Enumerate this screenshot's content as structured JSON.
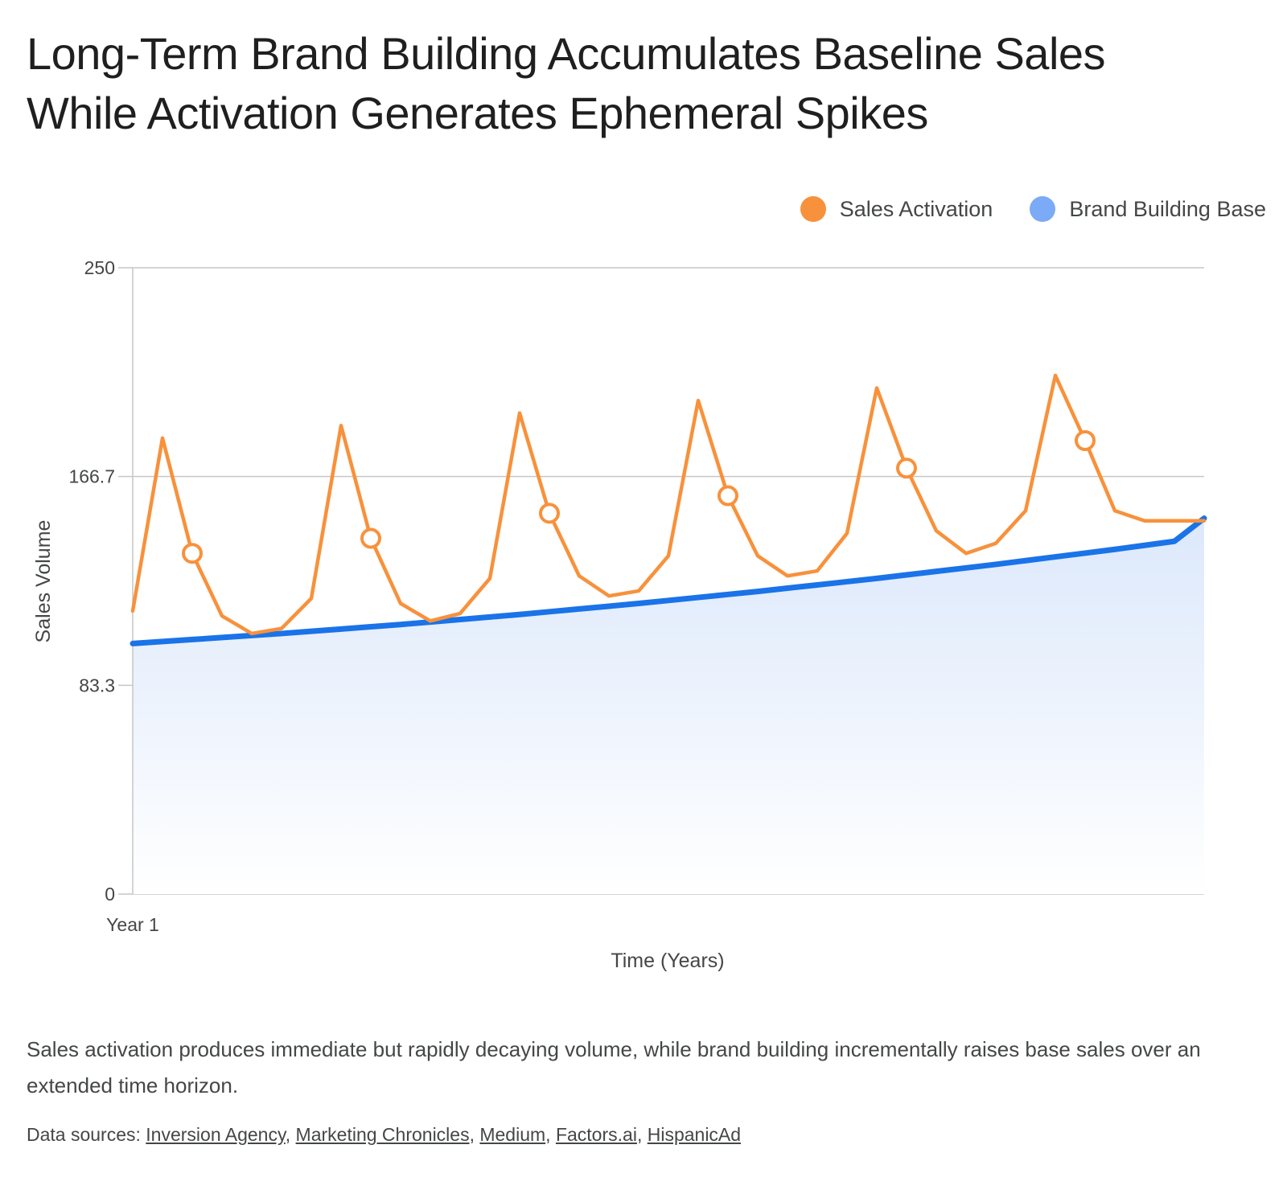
{
  "title_line1": "Long-Term Brand Building Accumulates Baseline Sales",
  "title_line2": "While Activation Generates Ephemeral Spikes",
  "description": "Sales activation produces immediate but rapidly decaying volume, while brand building incrementally raises base sales over an extended time horizon.",
  "sources": {
    "prefix": "Data sources: ",
    "links": [
      "Inversion Agency",
      "Marketing Chronicles",
      "Medium",
      "Factors.ai",
      "HispanicAd"
    ],
    "separator": ", "
  },
  "colors": {
    "activation": "#f8913b",
    "base": "#1a73e8",
    "base_legend": "#7baaf7",
    "area_top": "#dce8fb",
    "grid": "#c4c7c5",
    "axis_text": "#444746"
  },
  "chart_data": {
    "type": "line",
    "xlabel": "Time (Years)",
    "ylabel": "Sales Volume",
    "ylim": [
      0,
      250
    ],
    "yticks": [
      "0",
      "83.3",
      "166.7",
      "250"
    ],
    "x_tick_labels": [
      {
        "index": 0,
        "label": "Year 1"
      }
    ],
    "grid": true,
    "legend_position": "top-right",
    "x": [
      0,
      1,
      2,
      3,
      4,
      5,
      6,
      7,
      8,
      9,
      10,
      11,
      12,
      13,
      14,
      15,
      16,
      17,
      18,
      19,
      20,
      21,
      22,
      23,
      24,
      25,
      26,
      27,
      28,
      29,
      30,
      31,
      32,
      33,
      34,
      35,
      36
    ],
    "series": [
      {
        "name": "Sales Activation",
        "color": "#f8913b",
        "marker_indices": [
          2,
          8,
          14,
          20,
          26,
          32
        ],
        "values": [
          113,
          182,
          136,
          111,
          104,
          106,
          118,
          187,
          142,
          116,
          109,
          112,
          126,
          192,
          152,
          127,
          119,
          121,
          135,
          197,
          159,
          135,
          127,
          129,
          144,
          202,
          170,
          145,
          136,
          140,
          153,
          207,
          181,
          153,
          149,
          149,
          149
        ]
      },
      {
        "name": "Brand Building Base",
        "color": "#1a73e8",
        "values": [
          100.0,
          100.8,
          101.6,
          102.4,
          103.2,
          104.0,
          104.9,
          105.8,
          106.7,
          107.6,
          108.6,
          109.6,
          110.6,
          111.6,
          112.7,
          113.8,
          114.9,
          116.0,
          117.2,
          118.4,
          119.6,
          120.8,
          122.1,
          123.4,
          124.7,
          126.0,
          127.4,
          128.8,
          130.2,
          131.6,
          133.1,
          134.6,
          136.1,
          137.6,
          139.2,
          140.8,
          150.0
        ]
      }
    ]
  }
}
